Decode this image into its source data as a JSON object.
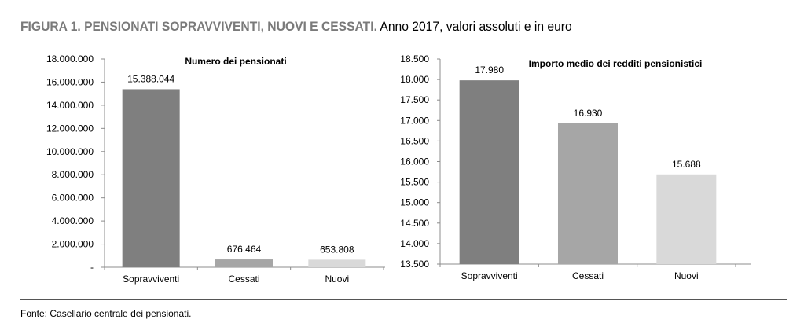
{
  "figure": {
    "title_bold": "FIGURA 1. PENSIONATI SOPRAVVIVENTI, NUOVI E CESSATI.",
    "title_rest": " Anno 2017, valori assoluti e in euro",
    "source": "Fonte: Casellario centrale dei pensionati."
  },
  "chart_data": [
    {
      "type": "bar",
      "title": "Numero dei pensionati",
      "categories": [
        "Sopravviventi",
        "Cessati",
        "Nuovi"
      ],
      "values": [
        15388044,
        676464,
        653808
      ],
      "value_labels": [
        "15.388.044",
        "676.464",
        "653.808"
      ],
      "colors": [
        "#7f7f7f",
        "#a6a6a6",
        "#d9d9d9"
      ],
      "ylim": [
        0,
        18000000
      ],
      "yticks": [
        0,
        2000000,
        4000000,
        6000000,
        8000000,
        10000000,
        12000000,
        14000000,
        16000000,
        18000000
      ],
      "ytick_labels": [
        "-",
        "2.000.000",
        "4.000.000",
        "6.000.000",
        "8.000.000",
        "10.000.000",
        "12.000.000",
        "14.000.000",
        "16.000.000",
        "18.000.000"
      ],
      "grid": false,
      "xlabel": "",
      "ylabel": ""
    },
    {
      "type": "bar",
      "title": "Importo medio dei redditi pensionistici",
      "categories": [
        "Sopravviventi",
        "Cessati",
        "Nuovi"
      ],
      "values": [
        17980,
        16930,
        15688
      ],
      "value_labels": [
        "17.980",
        "16.930",
        "15.688"
      ],
      "colors": [
        "#7f7f7f",
        "#a6a6a6",
        "#d9d9d9"
      ],
      "ylim": [
        13500,
        18500
      ],
      "yticks": [
        13500,
        14000,
        14500,
        15000,
        15500,
        16000,
        16500,
        17000,
        17500,
        18000,
        18500
      ],
      "ytick_labels": [
        "13.500",
        "14.000",
        "14.500",
        "15.000",
        "15.500",
        "16.000",
        "16.500",
        "17.000",
        "17.500",
        "18.000",
        "18.500"
      ],
      "grid": false,
      "xlabel": "",
      "ylabel": ""
    }
  ]
}
